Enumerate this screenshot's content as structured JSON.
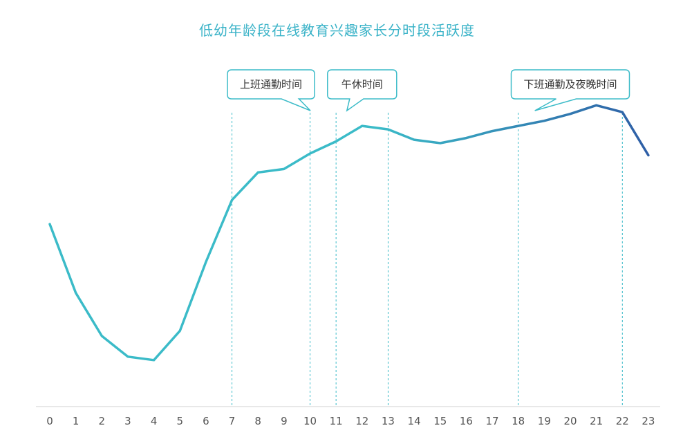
{
  "chart_data": {
    "type": "line",
    "title": "低幼年龄段在线教育兴趣家长分时段活跃度",
    "x": [
      "0",
      "1",
      "2",
      "3",
      "4",
      "5",
      "6",
      "7",
      "8",
      "9",
      "10",
      "11",
      "12",
      "13",
      "14",
      "15",
      "16",
      "17",
      "18",
      "19",
      "20",
      "21",
      "22",
      "23"
    ],
    "y": [
      53,
      33,
      20.5,
      14.5,
      13.5,
      22,
      42,
      60,
      68,
      69,
      73.5,
      77,
      81.5,
      80.5,
      77.5,
      76.5,
      78,
      80,
      81.5,
      83,
      85,
      87.5,
      85.5,
      73
    ],
    "ylim": [
      0,
      100
    ],
    "grid": false,
    "line_colors": [
      "#3bbbc8",
      "#2e5ea6"
    ],
    "annotations": [
      {
        "label": "上班通勤时间",
        "range": [
          7,
          10
        ]
      },
      {
        "label": "午休时间",
        "range": [
          11,
          13
        ]
      },
      {
        "label": "下班通勤及夜晚时间",
        "range": [
          18,
          22
        ]
      }
    ],
    "guide_lines_at": [
      7,
      10,
      11,
      13,
      18,
      22
    ],
    "annotation_color": "#3bbbc8"
  }
}
